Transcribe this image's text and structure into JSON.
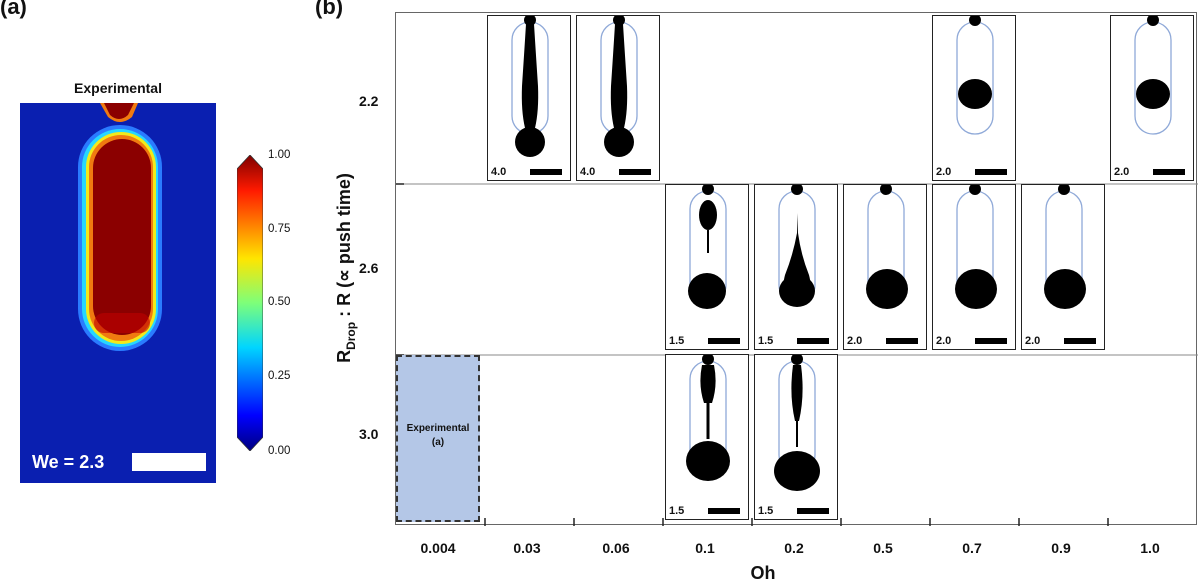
{
  "panel_a": {
    "label": "(a)",
    "title": "Experimental",
    "we_label": "We = 2.3",
    "colorbar": {
      "ticks": [
        "1.00",
        "0.75",
        "0.50",
        "0.25",
        "0.00"
      ]
    }
  },
  "panel_b": {
    "label": "(b)",
    "x_title": "Oh",
    "y_title_main": "R",
    "y_title_sub": "Drop",
    "y_title_rest": " : R (∝ push time)",
    "x_ticks": [
      "0.004",
      "0.03",
      "0.06",
      "0.1",
      "0.2",
      "0.5",
      "0.7",
      "0.9",
      "1.0"
    ],
    "y_ticks": [
      "2.2",
      "2.6",
      "3.0"
    ],
    "experimental_box": {
      "line1": "Experimental",
      "line2": "(a)"
    },
    "tiles": [
      {
        "row": 0,
        "col": 1,
        "value": "4.0",
        "shape": "jet"
      },
      {
        "row": 0,
        "col": 2,
        "value": "4.0",
        "shape": "jet"
      },
      {
        "row": 0,
        "col": 6,
        "value": "2.0",
        "shape": "drop"
      },
      {
        "row": 0,
        "col": 8,
        "value": "2.0",
        "shape": "drop"
      },
      {
        "row": 1,
        "col": 3,
        "value": "1.5",
        "shape": "split"
      },
      {
        "row": 1,
        "col": 4,
        "value": "1.5",
        "shape": "cone"
      },
      {
        "row": 1,
        "col": 5,
        "value": "2.0",
        "shape": "bottom"
      },
      {
        "row": 1,
        "col": 6,
        "value": "2.0",
        "shape": "bottom"
      },
      {
        "row": 1,
        "col": 7,
        "value": "2.0",
        "shape": "bottom"
      },
      {
        "row": 2,
        "col": 3,
        "value": "1.5",
        "shape": "split2"
      },
      {
        "row": 2,
        "col": 4,
        "value": "1.5",
        "shape": "cone2"
      }
    ]
  }
}
